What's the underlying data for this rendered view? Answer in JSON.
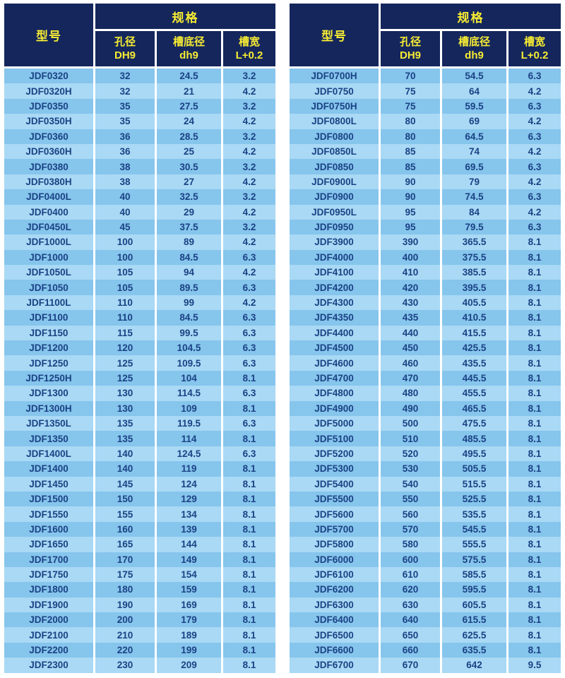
{
  "header": {
    "model_label": "型号",
    "spec_label": "规格",
    "columns": [
      {
        "line1": "孔径",
        "line2": "DH9"
      },
      {
        "line1": "槽底径",
        "line2": "dh9"
      },
      {
        "line1": "槽宽",
        "line2": "L+0.2"
      }
    ]
  },
  "colors": {
    "page_bg": "#ffffff",
    "header_bg": "#14265c",
    "header_text": "#f7ec33",
    "row_dark": "#86c5ec",
    "row_light": "#a9d9f5",
    "cell_text": "#1a4284"
  },
  "tables": [
    {
      "name": "left",
      "rows": [
        [
          "JDF0320",
          "32",
          "24.5",
          "3.2"
        ],
        [
          "JDF0320H",
          "32",
          "21",
          "4.2"
        ],
        [
          "JDF0350",
          "35",
          "27.5",
          "3.2"
        ],
        [
          "JDF0350H",
          "35",
          "24",
          "4.2"
        ],
        [
          "JDF0360",
          "36",
          "28.5",
          "3.2"
        ],
        [
          "JDF0360H",
          "36",
          "25",
          "4.2"
        ],
        [
          "JDF0380",
          "38",
          "30.5",
          "3.2"
        ],
        [
          "JDF0380H",
          "38",
          "27",
          "4.2"
        ],
        [
          "JDF0400L",
          "40",
          "32.5",
          "3.2"
        ],
        [
          "JDF0400",
          "40",
          "29",
          "4.2"
        ],
        [
          "JDF0450L",
          "45",
          "37.5",
          "3.2"
        ],
        [
          "JDF1000L",
          "100",
          "89",
          "4.2"
        ],
        [
          "JDF1000",
          "100",
          "84.5",
          "6.3"
        ],
        [
          "JDF1050L",
          "105",
          "94",
          "4.2"
        ],
        [
          "JDF1050",
          "105",
          "89.5",
          "6.3"
        ],
        [
          "JDF1100L",
          "110",
          "99",
          "4.2"
        ],
        [
          "JDF1100",
          "110",
          "84.5",
          "6.3"
        ],
        [
          "JDF1150",
          "115",
          "99.5",
          "6.3"
        ],
        [
          "JDF1200",
          "120",
          "104.5",
          "6.3"
        ],
        [
          "JDF1250",
          "125",
          "109.5",
          "6.3"
        ],
        [
          "JDF1250H",
          "125",
          "104",
          "8.1"
        ],
        [
          "JDF1300",
          "130",
          "114.5",
          "6.3"
        ],
        [
          "JDF1300H",
          "130",
          "109",
          "8.1"
        ],
        [
          "JDF1350L",
          "135",
          "119.5",
          "6.3"
        ],
        [
          "JDF1350",
          "135",
          "114",
          "8.1"
        ],
        [
          "JDF1400L",
          "140",
          "124.5",
          "6.3"
        ],
        [
          "JDF1400",
          "140",
          "119",
          "8.1"
        ],
        [
          "JDF1450",
          "145",
          "124",
          "8.1"
        ],
        [
          "JDF1500",
          "150",
          "129",
          "8.1"
        ],
        [
          "JDF1550",
          "155",
          "134",
          "8.1"
        ],
        [
          "JDF1600",
          "160",
          "139",
          "8.1"
        ],
        [
          "JDF1650",
          "165",
          "144",
          "8.1"
        ],
        [
          "JDF1700",
          "170",
          "149",
          "8.1"
        ],
        [
          "JDF1750",
          "175",
          "154",
          "8.1"
        ],
        [
          "JDF1800",
          "180",
          "159",
          "8.1"
        ],
        [
          "JDF1900",
          "190",
          "169",
          "8.1"
        ],
        [
          "JDF2000",
          "200",
          "179",
          "8.1"
        ],
        [
          "JDF2100",
          "210",
          "189",
          "8.1"
        ],
        [
          "JDF2200",
          "220",
          "199",
          "8.1"
        ],
        [
          "JDF2300",
          "230",
          "209",
          "8.1"
        ]
      ]
    },
    {
      "name": "right",
      "rows": [
        [
          "JDF0700H",
          "70",
          "54.5",
          "6.3"
        ],
        [
          "JDF0750",
          "75",
          "64",
          "4.2"
        ],
        [
          "JDF0750H",
          "75",
          "59.5",
          "6.3"
        ],
        [
          "JDF0800L",
          "80",
          "69",
          "4.2"
        ],
        [
          "JDF0800",
          "80",
          "64.5",
          "6.3"
        ],
        [
          "JDF0850L",
          "85",
          "74",
          "4.2"
        ],
        [
          "JDF0850",
          "85",
          "69.5",
          "6.3"
        ],
        [
          "JDF0900L",
          "90",
          "79",
          "4.2"
        ],
        [
          "JDF0900",
          "90",
          "74.5",
          "6.3"
        ],
        [
          "JDF0950L",
          "95",
          "84",
          "4.2"
        ],
        [
          "JDF0950",
          "95",
          "79.5",
          "6.3"
        ],
        [
          "JDF3900",
          "390",
          "365.5",
          "8.1"
        ],
        [
          "JDF4000",
          "400",
          "375.5",
          "8.1"
        ],
        [
          "JDF4100",
          "410",
          "385.5",
          "8.1"
        ],
        [
          "JDF4200",
          "420",
          "395.5",
          "8.1"
        ],
        [
          "JDF4300",
          "430",
          "405.5",
          "8.1"
        ],
        [
          "JDF4350",
          "435",
          "410.5",
          "8.1"
        ],
        [
          "JDF4400",
          "440",
          "415.5",
          "8.1"
        ],
        [
          "JDF4500",
          "450",
          "425.5",
          "8.1"
        ],
        [
          "JDF4600",
          "460",
          "435.5",
          "8.1"
        ],
        [
          "JDF4700",
          "470",
          "445.5",
          "8.1"
        ],
        [
          "JDF4800",
          "480",
          "455.5",
          "8.1"
        ],
        [
          "JDF4900",
          "490",
          "465.5",
          "8.1"
        ],
        [
          "JDF5000",
          "500",
          "475.5",
          "8.1"
        ],
        [
          "JDF5100",
          "510",
          "485.5",
          "8.1"
        ],
        [
          "JDF5200",
          "520",
          "495.5",
          "8.1"
        ],
        [
          "JDF5300",
          "530",
          "505.5",
          "8.1"
        ],
        [
          "JDF5400",
          "540",
          "515.5",
          "8.1"
        ],
        [
          "JDF5500",
          "550",
          "525.5",
          "8.1"
        ],
        [
          "JDF5600",
          "560",
          "535.5",
          "8.1"
        ],
        [
          "JDF5700",
          "570",
          "545.5",
          "8.1"
        ],
        [
          "JDF5800",
          "580",
          "555.5",
          "8.1"
        ],
        [
          "JDF6000",
          "600",
          "575.5",
          "8.1"
        ],
        [
          "JDF6100",
          "610",
          "585.5",
          "8.1"
        ],
        [
          "JDF6200",
          "620",
          "595.5",
          "8.1"
        ],
        [
          "JDF6300",
          "630",
          "605.5",
          "8.1"
        ],
        [
          "JDF6400",
          "640",
          "615.5",
          "8.1"
        ],
        [
          "JDF6500",
          "650",
          "625.5",
          "8.1"
        ],
        [
          "JDF6600",
          "660",
          "635.5",
          "8.1"
        ],
        [
          "JDF6700",
          "670",
          "642",
          "9.5"
        ]
      ]
    }
  ]
}
